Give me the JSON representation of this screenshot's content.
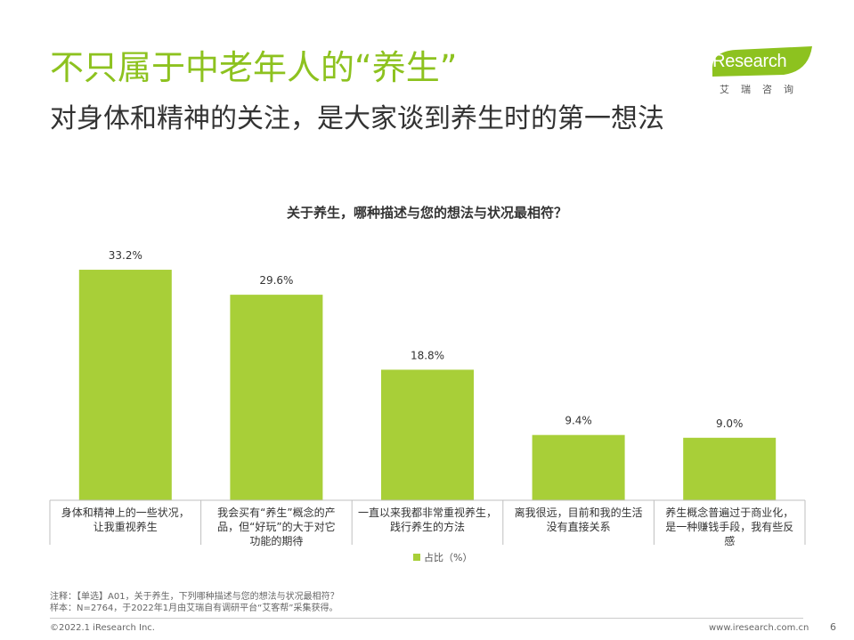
{
  "header": {
    "title": "不只属于中老年人的“养生”",
    "subtitle": "对身体和精神的关注，是大家谈到养生时的第一想法"
  },
  "logo": {
    "text": "iResearch",
    "sub": "艾瑞咨询",
    "color": "#8dc21f"
  },
  "chart_data": {
    "type": "bar",
    "title": "关于养生，哪种描述与您的想法与状况最相符？",
    "categories": [
      [
        "身体和精神上的一些状况，",
        "让我重视养生"
      ],
      [
        "我会买有“养生”概念的产",
        "品，但“好玩”的大于对它",
        "功能的期待"
      ],
      [
        "一直以来我都非常重视养生，",
        "践行养生的方法"
      ],
      [
        "离我很远，目前和我的生活",
        "没有直接关系"
      ],
      [
        "养生概念普遍过于商业化，",
        "是一种赚钱手段，我有些反",
        "感"
      ]
    ],
    "series": [
      {
        "name": "占比（%）",
        "values": [
          33.2,
          29.6,
          18.8,
          9.4,
          9.0
        ],
        "labels": [
          "33.2%",
          "29.6%",
          "18.8%",
          "9.4%",
          "9.0%"
        ]
      }
    ],
    "ylim": [
      0,
      40
    ],
    "bar_color": "#a8cf38",
    "legend_position": "bottom-center",
    "grid": false
  },
  "notes": {
    "line1": "注释：【单选】A01，关于养生，下列哪种描述与您的想法与状况最相符？",
    "line2": "样本：N=2764，于2022年1月由艾瑞自有调研平台“艾客帮”采集获得。"
  },
  "footer": {
    "copyright": "©2022.1 iResearch Inc.",
    "url": "www.iresearch.com.cn",
    "page": "6"
  }
}
